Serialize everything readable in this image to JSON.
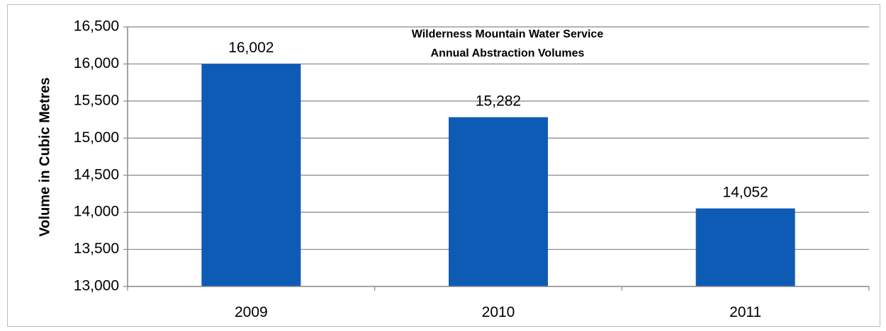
{
  "chart_data": {
    "type": "bar",
    "title_lines": [
      "Wilderness Mountain Water Service",
      "Annual Abstraction Volumes"
    ],
    "xlabel": "",
    "ylabel": "Volume in Cubic Metres",
    "categories": [
      "2009",
      "2010",
      "2011"
    ],
    "values": [
      16002,
      15282,
      14052
    ],
    "value_labels": [
      "16,002",
      "15,282",
      "14,052"
    ],
    "ylim": [
      13000,
      16500
    ],
    "yticks": [
      13000,
      13500,
      14000,
      14500,
      15000,
      15500,
      16000,
      16500
    ],
    "ytick_labels": [
      "13,000",
      "13,500",
      "14,000",
      "14,500",
      "15,000",
      "15,500",
      "16,000",
      "16,500"
    ],
    "grid": true,
    "legend": "none",
    "bar_color": "#0e5bb5"
  }
}
